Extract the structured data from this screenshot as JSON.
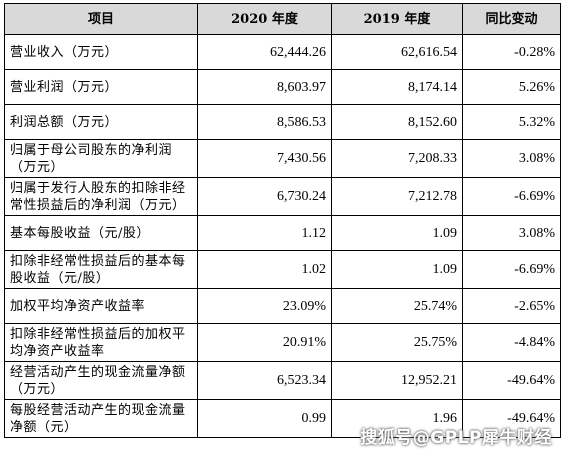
{
  "headers": [
    "项目",
    "2020 年度",
    "2019 年度",
    "同比变动"
  ],
  "rows": [
    {
      "label": "营业收入（万元）",
      "y2020": "62,444.26",
      "y2019": "62,616.54",
      "change": "-0.28%"
    },
    {
      "label": "营业利润（万元）",
      "y2020": "8,603.97",
      "y2019": "8,174.14",
      "change": "5.26%"
    },
    {
      "label": "利润总额（万元）",
      "y2020": "8,586.53",
      "y2019": "8,152.60",
      "change": "5.32%"
    },
    {
      "label": "归属于母公司股东的净利润（万元）",
      "y2020": "7,430.56",
      "y2019": "7,208.33",
      "change": "3.08%"
    },
    {
      "label": "归属于发行人股东的扣除非经常性损益后的净利润（万元）",
      "y2020": "6,730.24",
      "y2019": "7,212.78",
      "change": "-6.69%"
    },
    {
      "label": "基本每股收益（元/股）",
      "y2020": "1.12",
      "y2019": "1.09",
      "change": "3.08%"
    },
    {
      "label": "扣除非经常性损益后的基本每股收益（元/股）",
      "y2020": "1.02",
      "y2019": "1.09",
      "change": "-6.69%"
    },
    {
      "label": "加权平均净资产收益率",
      "y2020": "23.09%",
      "y2019": "25.74%",
      "change": "-2.65%"
    },
    {
      "label": "扣除非经常性损益后的加权平均净资产收益率",
      "y2020": "20.91%",
      "y2019": "25.75%",
      "change": "-4.84%"
    },
    {
      "label": "经营活动产生的现金流量净额（万元）",
      "y2020": "6,523.34",
      "y2019": "12,952.21",
      "change": "-49.64%"
    },
    {
      "label": "每股经营活动产生的现金流量净额（元）",
      "y2020": "0.99",
      "y2019": "1.96",
      "change": "-49.64%"
    }
  ],
  "watermark": "搜狐号@GPLP犀牛财经"
}
